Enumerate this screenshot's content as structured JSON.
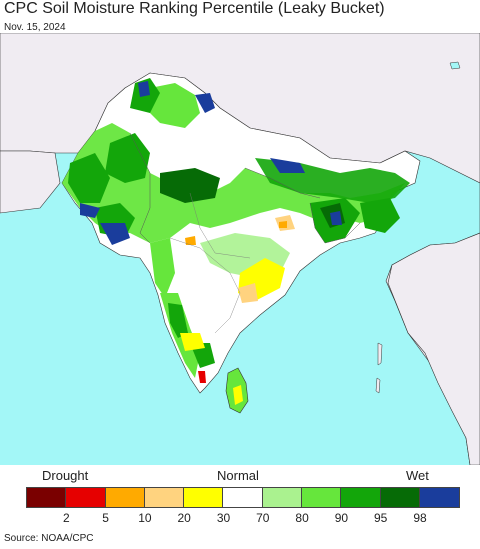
{
  "title": "CPC Soil Moisture Ranking Percentile (Leaky Bucket)",
  "date": "Nov. 15, 2024",
  "legend": {
    "drought_label": "Drought",
    "normal_label": "Normal",
    "wet_label": "Wet",
    "classes": [
      {
        "color": "#7a0000"
      },
      {
        "color": "#e60000"
      },
      {
        "color": "#ffaa00"
      },
      {
        "color": "#ffd37f"
      },
      {
        "color": "#ffff00"
      },
      {
        "color": "#ffffff"
      },
      {
        "color": "#aaf28f"
      },
      {
        "color": "#66e63c"
      },
      {
        "color": "#13a60a"
      },
      {
        "color": "#066b06"
      },
      {
        "color": "#1a3d9c"
      }
    ],
    "ticks": [
      "2",
      "5",
      "10",
      "20",
      "30",
      "70",
      "80",
      "90",
      "95",
      "98"
    ]
  },
  "source": "Source: NOAA/CPC",
  "colors": {
    "ocean": "#a3f7f7",
    "land_outside": "#f0ecf2",
    "border": "#333333"
  }
}
